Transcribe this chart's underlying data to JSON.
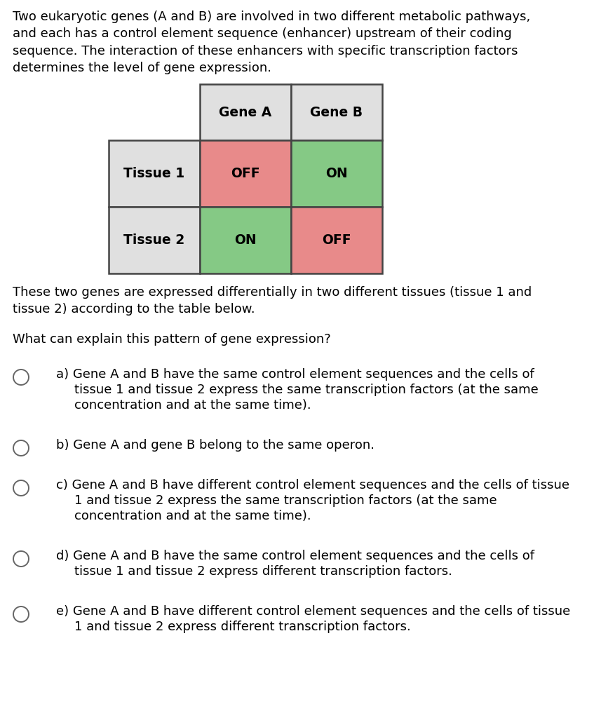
{
  "intro_text": "Two eukaryotic genes (A and B) are involved in two different metabolic pathways,\nand each has a control element sequence (enhancer) upstream of their coding\nsequence. The interaction of these enhancers with specific transcription factors\ndetermines the level of gene expression.",
  "middle_text": "These two genes are expressed differentially in two different tissues (tissue 1 and\ntissue 2) according to the table below.",
  "question_text": "What can explain this pattern of gene expression?",
  "table": {
    "col_headers": [
      "Gene A",
      "Gene B"
    ],
    "row_headers": [
      "Tissue 1",
      "Tissue 2"
    ],
    "data": [
      [
        "OFF",
        "ON"
      ],
      [
        "ON",
        "OFF"
      ]
    ],
    "colors": [
      [
        "#e88a8a",
        "#85c985"
      ],
      [
        "#85c985",
        "#e88a8a"
      ]
    ],
    "header_bg": "#e0e0e0",
    "row_bg": "#e0e0e0",
    "border_color": "#444444"
  },
  "options": [
    {
      "letter": "a)",
      "text": "Gene A and B have the same control element sequences and the cells of\ntissue 1 and tissue 2 express the same transcription factors (at the same\nconcentration and at the same time)."
    },
    {
      "letter": "b)",
      "text": "Gene A and gene B belong to the same operon."
    },
    {
      "letter": "c)",
      "text": "Gene A and B have different control element sequences and the cells of tissue\n1 and tissue 2 express the same transcription factors (at the same\nconcentration and at the same time)."
    },
    {
      "letter": "d)",
      "text": "Gene A and B have the same control element sequences and the cells of\ntissue 1 and tissue 2 express different transcription factors."
    },
    {
      "letter": "e)",
      "text": "Gene A and B have different control element sequences and the cells of tissue\n1 and tissue 2 express different transcription factors."
    }
  ],
  "bg_color": "#ffffff",
  "text_color": "#000000",
  "font_size_body": 13.0,
  "font_size_table": 13.5
}
